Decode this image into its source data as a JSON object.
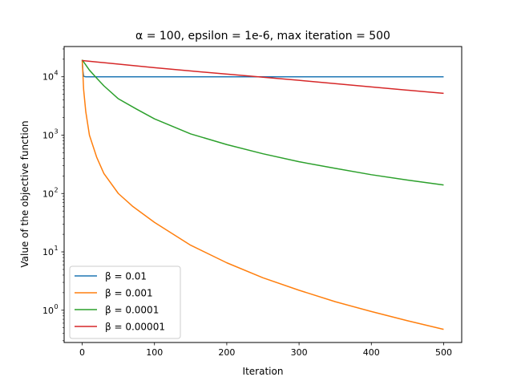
{
  "chart_data": {
    "type": "line",
    "title": "α = 100, epsilon = 1e-6, max iteration = 500",
    "xlabel": "Iteration",
    "ylabel": "Value of the objective function",
    "xlim": [
      -25,
      525
    ],
    "ylim": [
      0.28,
      33000
    ],
    "yscale": "log",
    "grid": false,
    "legend_position": "lower-left",
    "x_ticks": [
      0,
      100,
      200,
      300,
      400,
      500
    ],
    "y_ticks": [
      {
        "value": 1,
        "mant": "10",
        "exp": "0"
      },
      {
        "value": 10,
        "mant": "10",
        "exp": "1"
      },
      {
        "value": 100,
        "mant": "10",
        "exp": "2"
      },
      {
        "value": 1000,
        "mant": "10",
        "exp": "3"
      },
      {
        "value": 10000,
        "mant": "10",
        "exp": "4"
      }
    ],
    "series": [
      {
        "name": "β = 0.01",
        "color": "#1f77b4",
        "x": [
          0,
          1,
          2,
          5,
          10,
          20,
          50,
          100,
          200,
          300,
          400,
          500
        ],
        "values": [
          19500,
          12500,
          10200,
          10000,
          10000,
          10000,
          10000,
          10000,
          10000,
          10000,
          10000,
          10000
        ]
      },
      {
        "name": "β = 0.001",
        "color": "#ff7f0e",
        "x": [
          0,
          2,
          5,
          10,
          20,
          30,
          50,
          70,
          100,
          150,
          200,
          250,
          300,
          350,
          400,
          450,
          500
        ],
        "values": [
          19500,
          6000,
          2500,
          1000,
          420,
          220,
          100,
          60,
          32,
          13,
          6.5,
          3.6,
          2.2,
          1.4,
          0.95,
          0.66,
          0.47
        ]
      },
      {
        "name": "β = 0.0001",
        "color": "#2ca02c",
        "x": [
          0,
          10,
          20,
          30,
          50,
          75,
          100,
          150,
          200,
          250,
          300,
          350,
          400,
          450,
          500
        ],
        "values": [
          19500,
          13000,
          9500,
          7000,
          4200,
          2800,
          1900,
          1050,
          690,
          480,
          350,
          270,
          210,
          170,
          140
        ]
      },
      {
        "name": "β = 0.00001",
        "color": "#d62728",
        "x": [
          0,
          100,
          200,
          300,
          400,
          500
        ],
        "values": [
          19000,
          14300,
          11100,
          8700,
          6700,
          5200
        ]
      }
    ]
  }
}
